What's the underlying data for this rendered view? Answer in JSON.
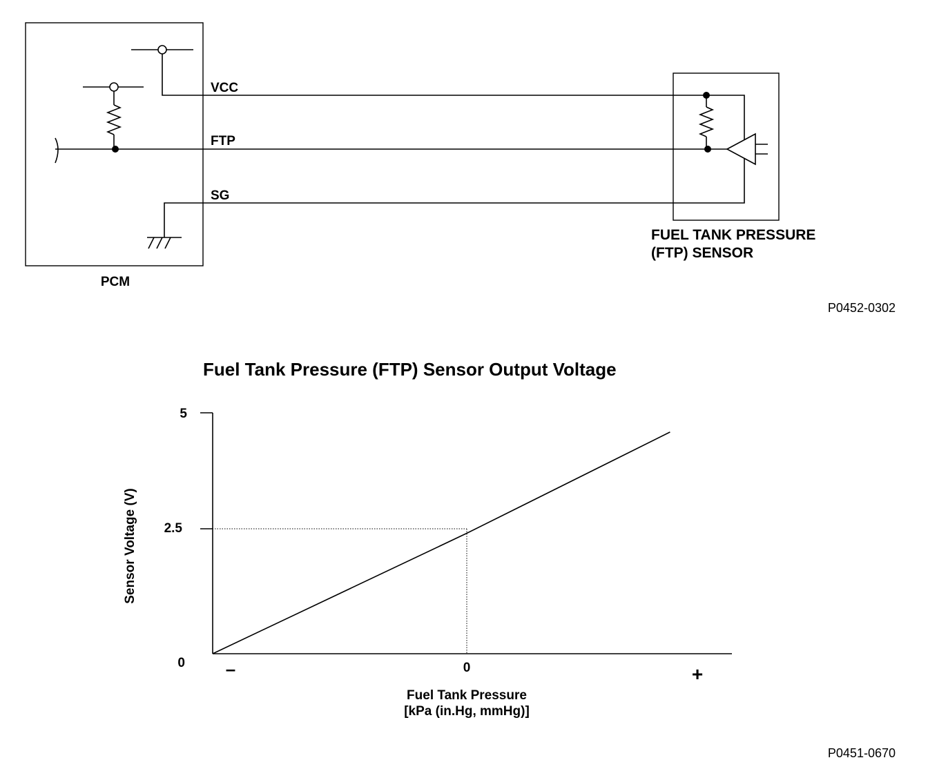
{
  "circuit": {
    "pcm_label": "PCM",
    "sensor_label_line1": "FUEL TANK PRESSURE",
    "sensor_label_line2": "(FTP) SENSOR",
    "wire_vcc": "VCC",
    "wire_ftp": "FTP",
    "wire_sg": "SG",
    "figure_code": "P0452-0302"
  },
  "chart": {
    "title": "Fuel Tank Pressure (FTP) Sensor Output Voltage",
    "ylabel": "Sensor Voltage (V)",
    "xlabel_line1": "Fuel Tank Pressure",
    "xlabel_line2": "[kPa (in.Hg, mmHg)]",
    "y_ticks": [
      "5",
      "2.5",
      "0"
    ],
    "x_ticks": [
      "–",
      "0",
      "+"
    ],
    "figure_code": "P0451-0670"
  },
  "chart_data": {
    "type": "line",
    "title": "Fuel Tank Pressure (FTP) Sensor Output Voltage",
    "xlabel": "Fuel Tank Pressure [kPa (in.Hg, mmHg)]",
    "ylabel": "Sensor Voltage (V)",
    "x_ticks": [
      "–",
      "0",
      "+"
    ],
    "y_ticks": [
      0,
      2.5,
      5
    ],
    "ylim": [
      0,
      5
    ],
    "series": [
      {
        "x": [
          -1,
          0,
          0.8
        ],
        "y": [
          0,
          2.5,
          4.6
        ]
      }
    ],
    "reference_point": {
      "x": 0,
      "y": 2.5
    }
  }
}
